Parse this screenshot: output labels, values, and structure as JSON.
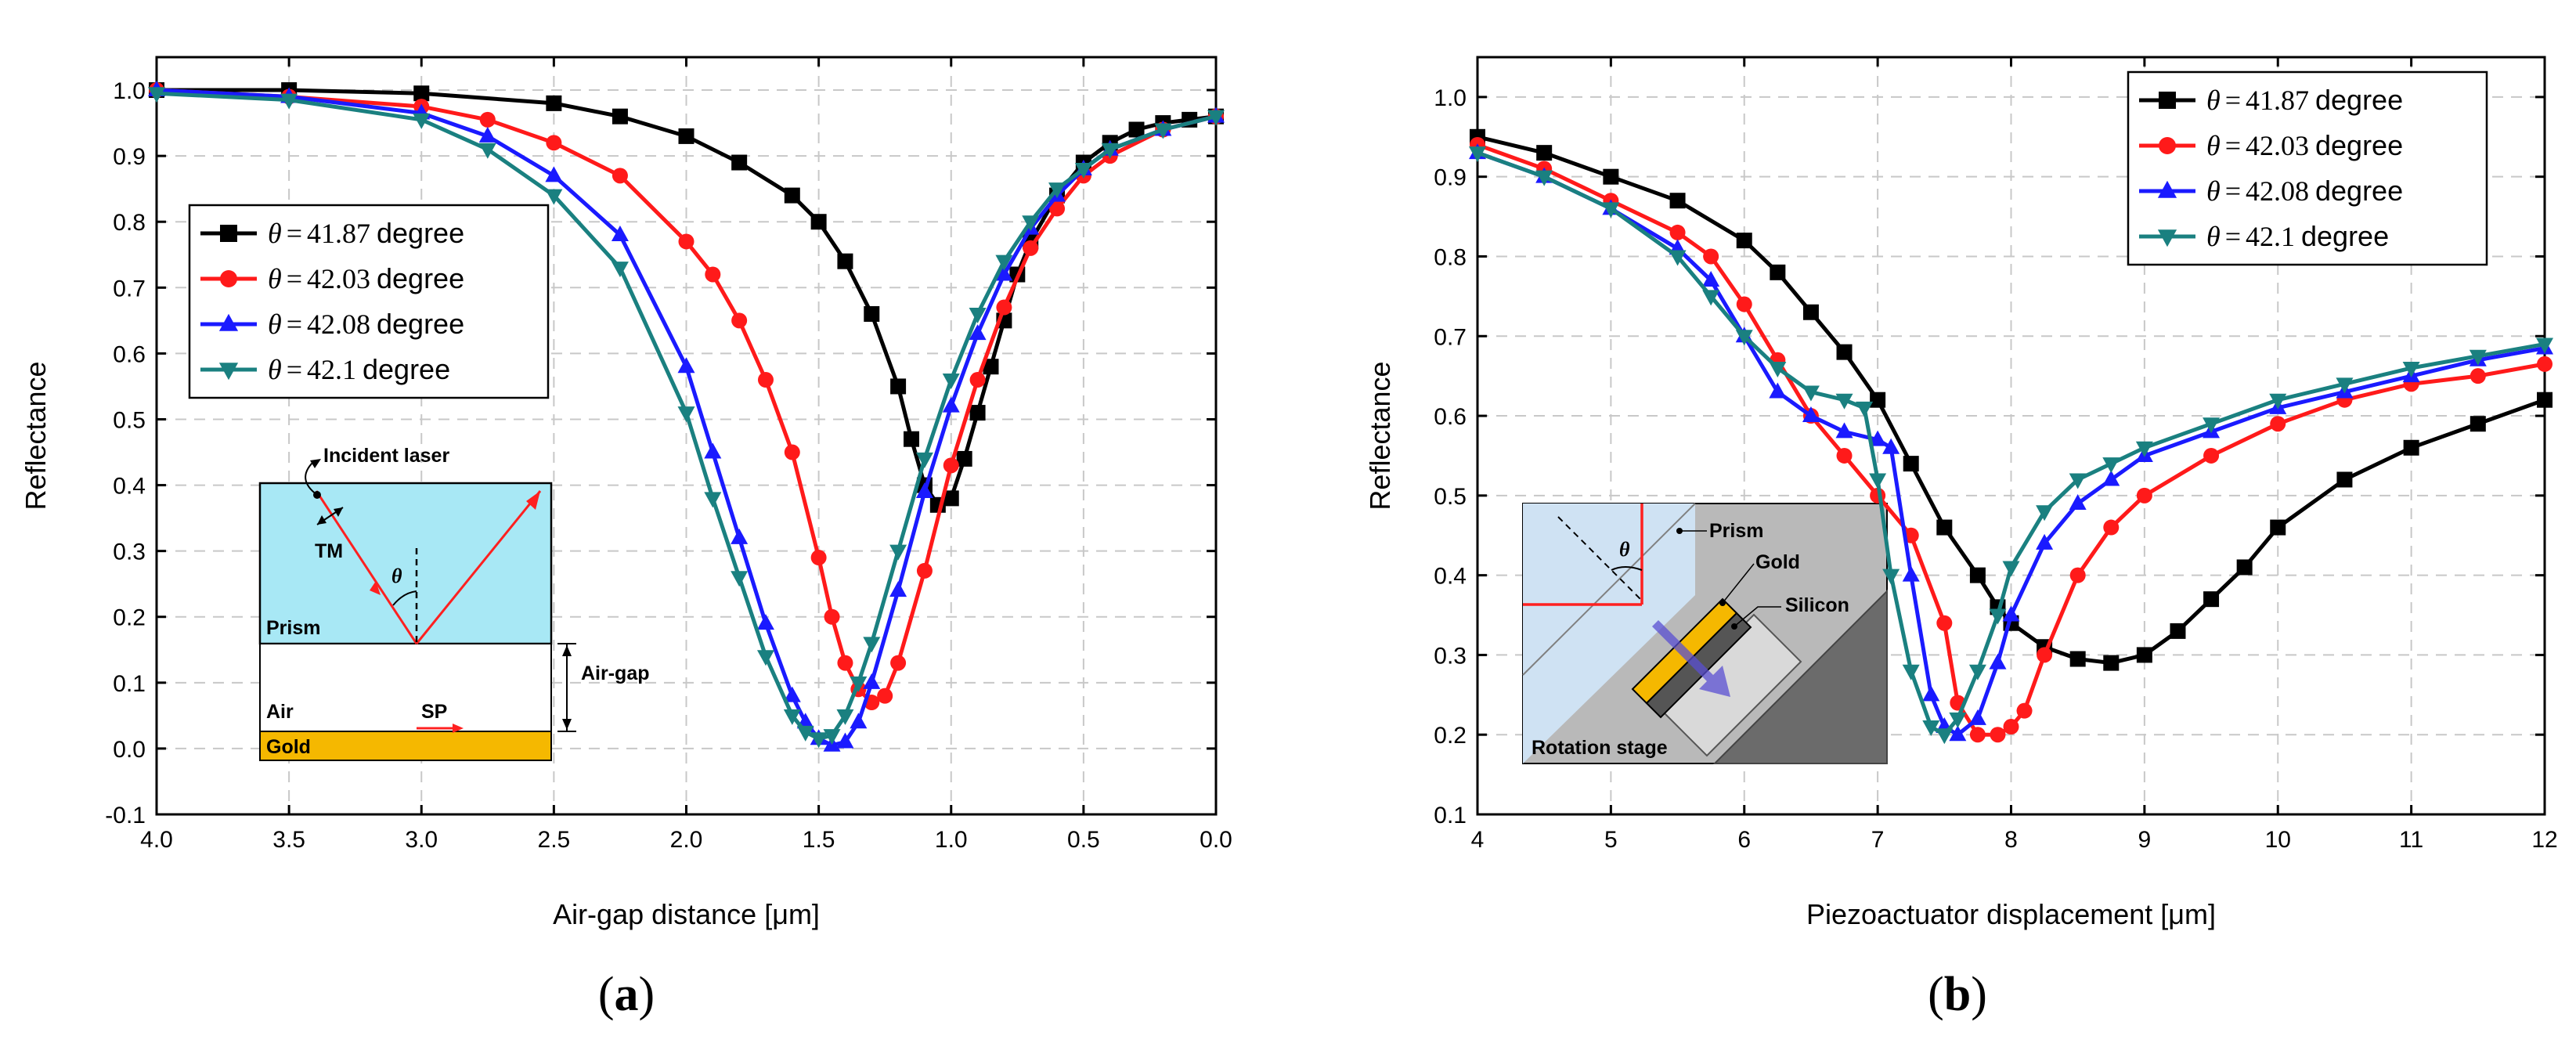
{
  "chart_data": [
    {
      "type": "line",
      "panel_label": "(a)",
      "xlabel": "Air-gap distance [μm]",
      "ylabel": "Reflectance",
      "xlim": [
        4.0,
        0.0
      ],
      "ylim": [
        -0.1,
        1.05
      ],
      "x_reversed": true,
      "grid": true,
      "xticks": [
        4.0,
        3.5,
        3.0,
        2.5,
        2.0,
        1.5,
        1.0,
        0.5,
        0.0
      ],
      "xtick_labels": [
        "4.0",
        "3.5",
        "3.0",
        "2.5",
        "2.0",
        "1.5",
        "1.0",
        "0.5",
        "0.0"
      ],
      "yticks": [
        -0.1,
        0.0,
        0.1,
        0.2,
        0.3,
        0.4,
        0.5,
        0.6,
        0.7,
        0.8,
        0.9,
        1.0
      ],
      "ytick_labels": [
        "-0.1",
        "0.0",
        "0.1",
        "0.2",
        "0.3",
        "0.4",
        "0.5",
        "0.6",
        "0.7",
        "0.8",
        "0.9",
        "1.0"
      ],
      "legend_position": "middle-left",
      "series": [
        {
          "name": "θ = 41.87 degree",
          "theta_symbol": "θ",
          "eq": "=",
          "value_text": "41.87",
          "unit": "degree",
          "color": "#000000",
          "marker": "square",
          "x": [
            4.0,
            3.5,
            3.0,
            2.5,
            2.25,
            2.0,
            1.8,
            1.6,
            1.5,
            1.4,
            1.3,
            1.2,
            1.15,
            1.1,
            1.05,
            1.0,
            0.95,
            0.9,
            0.85,
            0.8,
            0.75,
            0.7,
            0.6,
            0.5,
            0.4,
            0.3,
            0.2,
            0.1,
            0.0
          ],
          "y": [
            1.0,
            1.0,
            0.995,
            0.98,
            0.96,
            0.93,
            0.89,
            0.84,
            0.8,
            0.74,
            0.66,
            0.55,
            0.47,
            0.4,
            0.37,
            0.38,
            0.44,
            0.51,
            0.58,
            0.65,
            0.72,
            0.77,
            0.84,
            0.89,
            0.92,
            0.94,
            0.95,
            0.955,
            0.96
          ]
        },
        {
          "name": "θ = 42.03 degree",
          "theta_symbol": "θ",
          "eq": "=",
          "value_text": "42.03",
          "unit": "degree",
          "color": "#ff1a1a",
          "marker": "circle",
          "x": [
            4.0,
            3.5,
            3.0,
            2.75,
            2.5,
            2.25,
            2.0,
            1.9,
            1.8,
            1.7,
            1.6,
            1.5,
            1.45,
            1.4,
            1.35,
            1.3,
            1.25,
            1.2,
            1.1,
            1.0,
            0.9,
            0.8,
            0.7,
            0.6,
            0.5,
            0.4,
            0.2,
            0.0
          ],
          "y": [
            1.0,
            0.99,
            0.975,
            0.955,
            0.92,
            0.87,
            0.77,
            0.72,
            0.65,
            0.56,
            0.45,
            0.29,
            0.2,
            0.13,
            0.09,
            0.07,
            0.08,
            0.13,
            0.27,
            0.43,
            0.56,
            0.67,
            0.76,
            0.82,
            0.87,
            0.9,
            0.94,
            0.96
          ]
        },
        {
          "name": "θ = 42.08 degree",
          "theta_symbol": "θ",
          "eq": "=",
          "value_text": "42.08",
          "unit": "degree",
          "color": "#1a1aff",
          "marker": "triangle-up",
          "x": [
            4.0,
            3.5,
            3.0,
            2.75,
            2.5,
            2.25,
            2.0,
            1.9,
            1.8,
            1.7,
            1.6,
            1.55,
            1.5,
            1.45,
            1.4,
            1.35,
            1.3,
            1.2,
            1.1,
            1.0,
            0.9,
            0.8,
            0.7,
            0.6,
            0.5,
            0.4,
            0.2,
            0.0
          ],
          "y": [
            1.0,
            0.99,
            0.965,
            0.93,
            0.87,
            0.78,
            0.58,
            0.45,
            0.32,
            0.19,
            0.08,
            0.04,
            0.015,
            0.005,
            0.01,
            0.04,
            0.1,
            0.24,
            0.39,
            0.52,
            0.63,
            0.72,
            0.79,
            0.84,
            0.88,
            0.91,
            0.94,
            0.96
          ]
        },
        {
          "name": "θ = 42.1 degree",
          "theta_symbol": "θ",
          "eq": "=",
          "value_text": "42.1",
          "unit": "degree",
          "color": "#1a8080",
          "marker": "triangle-down",
          "x": [
            4.0,
            3.5,
            3.0,
            2.75,
            2.5,
            2.25,
            2.0,
            1.9,
            1.8,
            1.7,
            1.6,
            1.55,
            1.5,
            1.45,
            1.4,
            1.35,
            1.3,
            1.2,
            1.1,
            1.0,
            0.9,
            0.8,
            0.7,
            0.6,
            0.5,
            0.4,
            0.2,
            0.0
          ],
          "y": [
            0.995,
            0.985,
            0.955,
            0.91,
            0.84,
            0.73,
            0.51,
            0.38,
            0.26,
            0.14,
            0.05,
            0.025,
            0.015,
            0.02,
            0.05,
            0.1,
            0.16,
            0.3,
            0.44,
            0.56,
            0.66,
            0.74,
            0.8,
            0.85,
            0.88,
            0.91,
            0.94,
            0.96
          ]
        }
      ],
      "inset": {
        "incident_label": "Incident laser",
        "tm_label": "TM",
        "theta_label": "θ",
        "prism_label": "Prism",
        "airgap_label": "Air-gap",
        "air_label": "Air",
        "sp_label": "SP",
        "gold_label": "Gold",
        "prism_color": "#a8e8f5",
        "gold_color": "#f5b800",
        "beam_color": "#ff2020"
      }
    },
    {
      "type": "line",
      "panel_label": "(b)",
      "xlabel": "Piezoactuator displacement [μm]",
      "ylabel": "Reflectance",
      "xlim": [
        4,
        12
      ],
      "ylim": [
        0.1,
        1.05
      ],
      "x_reversed": false,
      "grid": true,
      "xticks": [
        4,
        5,
        6,
        7,
        8,
        9,
        10,
        11,
        12
      ],
      "xtick_labels": [
        "4",
        "5",
        "6",
        "7",
        "8",
        "9",
        "10",
        "11",
        "12"
      ],
      "yticks": [
        0.1,
        0.2,
        0.3,
        0.4,
        0.5,
        0.6,
        0.7,
        0.8,
        0.9,
        1.0
      ],
      "ytick_labels": [
        "0.1",
        "0.2",
        "0.3",
        "0.4",
        "0.5",
        "0.6",
        "0.7",
        "0.8",
        "0.9",
        "1.0"
      ],
      "legend_position": "top-right",
      "series": [
        {
          "name": "θ = 41.87 degree",
          "theta_symbol": "θ",
          "eq": "=",
          "value_text": "41.87",
          "unit": "degree",
          "color": "#000000",
          "marker": "square",
          "x": [
            4,
            4.5,
            5,
            5.5,
            6,
            6.25,
            6.5,
            6.75,
            7,
            7.25,
            7.5,
            7.75,
            7.9,
            8,
            8.25,
            8.5,
            8.75,
            9,
            9.25,
            9.5,
            9.75,
            10,
            10.5,
            11,
            11.5,
            12
          ],
          "y": [
            0.95,
            0.93,
            0.9,
            0.87,
            0.82,
            0.78,
            0.73,
            0.68,
            0.62,
            0.54,
            0.46,
            0.4,
            0.36,
            0.34,
            0.31,
            0.295,
            0.29,
            0.3,
            0.33,
            0.37,
            0.41,
            0.46,
            0.52,
            0.56,
            0.59,
            0.62
          ]
        },
        {
          "name": "θ = 42.03 degree",
          "theta_symbol": "θ",
          "eq": "=",
          "value_text": "42.03",
          "unit": "degree",
          "color": "#ff1a1a",
          "marker": "circle",
          "x": [
            4,
            4.5,
            5,
            5.5,
            5.75,
            6,
            6.25,
            6.5,
            6.75,
            7,
            7.25,
            7.5,
            7.6,
            7.75,
            7.9,
            8,
            8.1,
            8.25,
            8.5,
            8.75,
            9,
            9.5,
            10,
            10.5,
            11,
            11.5,
            12
          ],
          "y": [
            0.94,
            0.91,
            0.87,
            0.83,
            0.8,
            0.74,
            0.67,
            0.6,
            0.55,
            0.5,
            0.45,
            0.34,
            0.24,
            0.2,
            0.2,
            0.21,
            0.23,
            0.3,
            0.4,
            0.46,
            0.5,
            0.55,
            0.59,
            0.62,
            0.64,
            0.65,
            0.665
          ]
        },
        {
          "name": "θ = 42.08 degree",
          "theta_symbol": "θ",
          "eq": "=",
          "value_text": "42.08",
          "unit": "degree",
          "color": "#1a1aff",
          "marker": "triangle-up",
          "x": [
            4,
            4.5,
            5,
            5.5,
            5.75,
            6,
            6.25,
            6.5,
            6.75,
            7,
            7.1,
            7.25,
            7.4,
            7.5,
            7.6,
            7.75,
            7.9,
            8,
            8.25,
            8.5,
            8.75,
            9,
            9.5,
            10,
            10.5,
            11,
            11.5,
            12
          ],
          "y": [
            0.93,
            0.9,
            0.86,
            0.81,
            0.77,
            0.7,
            0.63,
            0.6,
            0.58,
            0.57,
            0.56,
            0.4,
            0.25,
            0.21,
            0.2,
            0.22,
            0.29,
            0.35,
            0.44,
            0.49,
            0.52,
            0.55,
            0.58,
            0.61,
            0.63,
            0.65,
            0.67,
            0.685
          ]
        },
        {
          "name": "θ = 42.1 degree",
          "theta_symbol": "θ",
          "eq": "=",
          "value_text": "42.1",
          "unit": "degree",
          "color": "#1a8080",
          "marker": "triangle-down",
          "x": [
            4,
            4.5,
            5,
            5.5,
            5.75,
            6,
            6.25,
            6.5,
            6.75,
            6.9,
            7,
            7.1,
            7.25,
            7.4,
            7.5,
            7.6,
            7.75,
            7.9,
            8,
            8.25,
            8.5,
            8.75,
            9,
            9.5,
            10,
            10.5,
            11,
            11.5,
            12
          ],
          "y": [
            0.93,
            0.9,
            0.86,
            0.8,
            0.75,
            0.7,
            0.66,
            0.63,
            0.62,
            0.61,
            0.52,
            0.4,
            0.28,
            0.21,
            0.2,
            0.22,
            0.28,
            0.35,
            0.41,
            0.48,
            0.52,
            0.54,
            0.56,
            0.59,
            0.62,
            0.64,
            0.66,
            0.675,
            0.69
          ]
        }
      ],
      "inset": {
        "theta_label": "θ",
        "prism_label": "Prism",
        "gold_label": "Gold",
        "silicon_label": "Silicon",
        "stage_label": "Rotation stage",
        "bg_color": "#b9b9b9",
        "prism_color": "#cfe2f3",
        "gold_color": "#f5b800",
        "arrow_color": "#5a4fd1",
        "beam_color": "#ff2020"
      }
    }
  ]
}
